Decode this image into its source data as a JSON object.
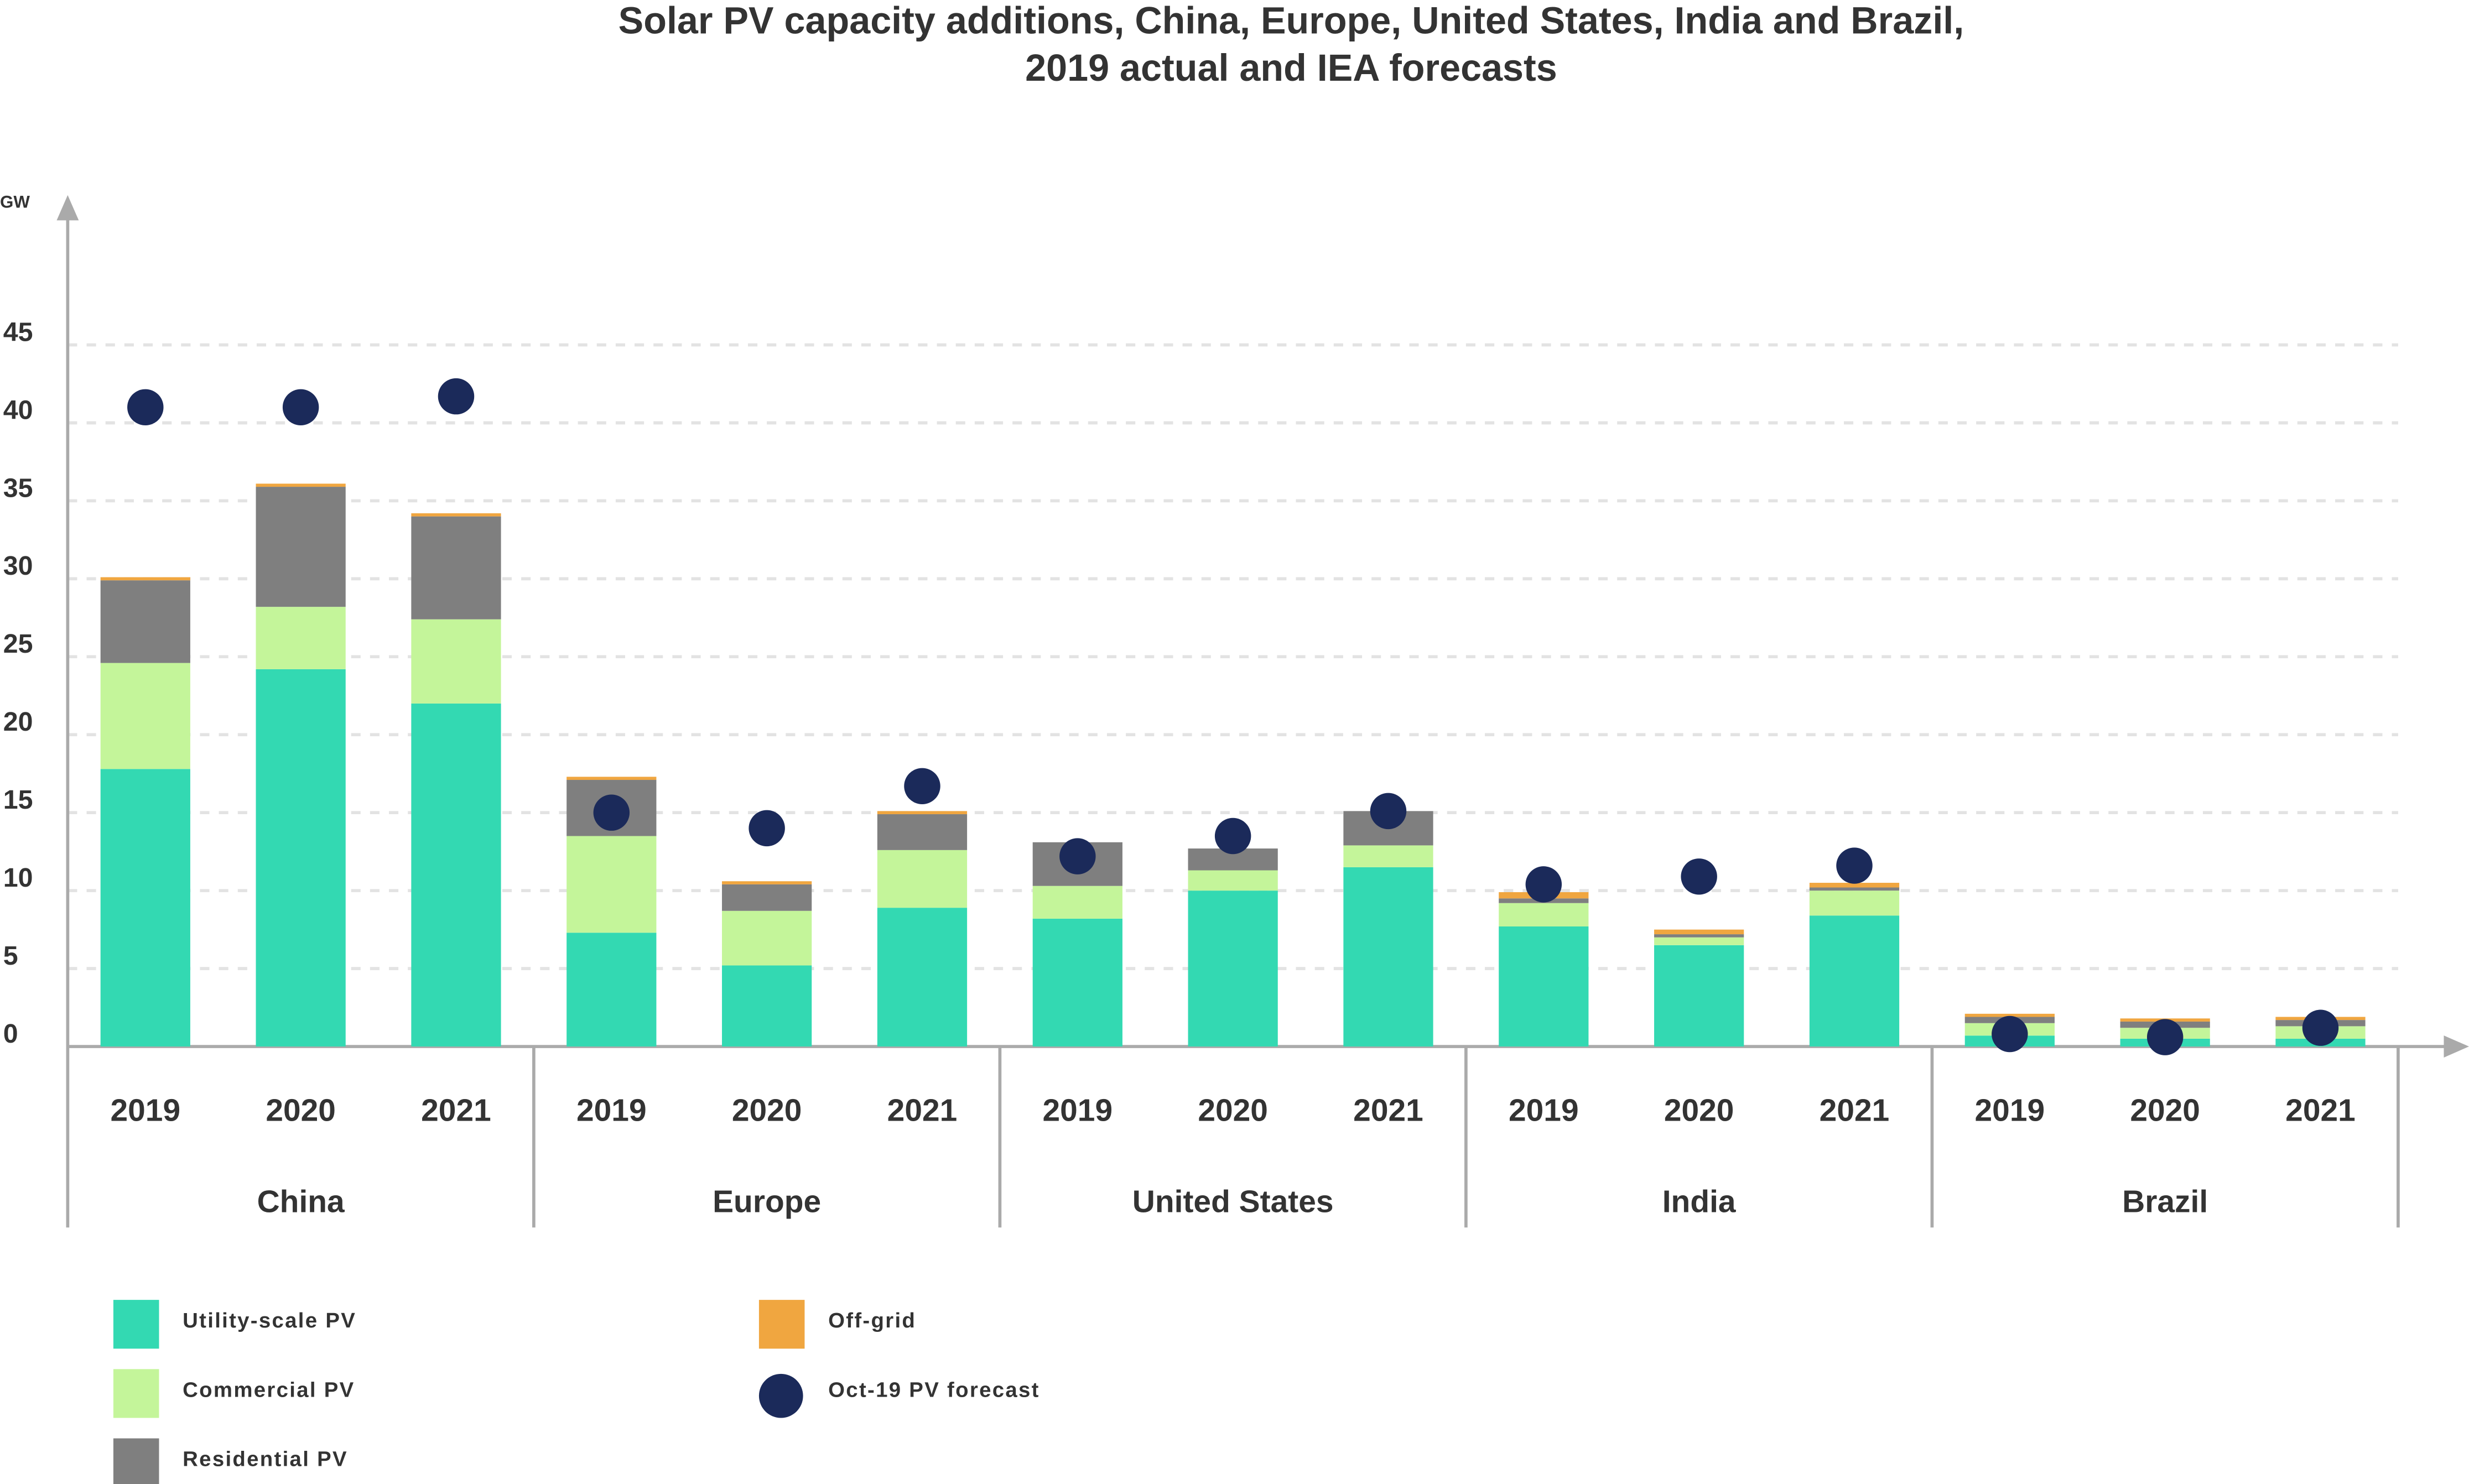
{
  "chart_data": {
    "type": "bar",
    "stacked": true,
    "title": [
      "Solar PV capacity additions, China, Europe, United States, India and Brazil,",
      "2019 actual and IEA forecasts"
    ],
    "y_label": "GW",
    "categories": [
      "2019",
      "2020",
      "2021",
      "2019",
      "2020",
      "2021",
      "2019",
      "2020",
      "2021",
      "2019",
      "2020",
      "2021",
      "2019",
      "2020",
      "2021"
    ],
    "groups": [
      "China",
      "Europe",
      "United States",
      "India",
      "Brazil"
    ],
    "ylim": [
      0,
      54
    ],
    "yticks": [
      0,
      5,
      10,
      15,
      20,
      25,
      30,
      35,
      40,
      45
    ],
    "grid": true,
    "series": [
      {
        "name": "Utility-scale PV",
        "color": "#33d9b2",
        "type": "bar",
        "values": [
          17.8,
          24.2,
          22.0,
          7.3,
          5.2,
          8.9,
          8.2,
          10.0,
          11.5,
          7.7,
          6.5,
          8.4,
          0.7,
          0.5,
          0.5
        ]
      },
      {
        "name": "Commercial PV",
        "color": "#c4f59a",
        "type": "bar",
        "values": [
          6.8,
          4.0,
          5.4,
          6.2,
          3.5,
          3.7,
          2.1,
          1.3,
          1.4,
          1.5,
          0.5,
          1.6,
          0.8,
          0.7,
          0.8
        ]
      },
      {
        "name": "Residential PV",
        "color": "#7f7f7f",
        "type": "bar",
        "values": [
          5.3,
          7.7,
          6.6,
          3.6,
          1.7,
          2.3,
          2.8,
          1.4,
          2.2,
          0.3,
          0.2,
          0.2,
          0.4,
          0.4,
          0.4
        ]
      },
      {
        "name": "Off-grid",
        "color": "#f0a640",
        "type": "bar",
        "values": [
          0.2,
          0.2,
          0.2,
          0.2,
          0.2,
          0.2,
          0,
          0,
          0,
          0.4,
          0.3,
          0.3,
          0.2,
          0.2,
          0.2
        ]
      },
      {
        "name": "Oct-19 PV forecast",
        "color": "#1b2a5a",
        "type": "scatter",
        "values": [
          41.0,
          41.0,
          41.7,
          15.0,
          14.0,
          16.7,
          12.2,
          13.5,
          15.1,
          10.4,
          10.9,
          11.6,
          0.8,
          0.6,
          1.2
        ]
      }
    ]
  }
}
